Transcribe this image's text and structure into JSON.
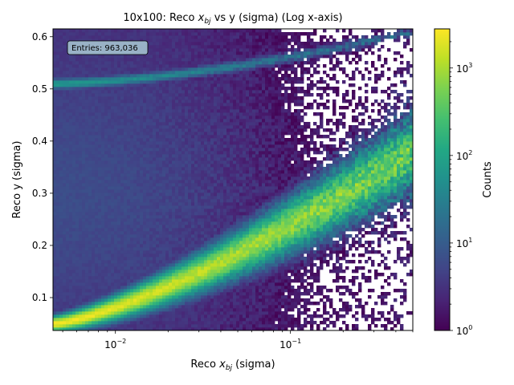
{
  "chart_data": {
    "type": "heatmap",
    "title_prefix": "10x100: Reco ",
    "title_var": "x",
    "title_sub": "bj",
    "title_suffix": " vs y (sigma) (Log x-axis)",
    "xlabel_prefix": "Reco ",
    "xlabel_var": "x",
    "xlabel_sub": "bj",
    "xlabel_suffix": " (sigma)",
    "ylabel": "Reco y (sigma)",
    "x_scale": "log",
    "xlim": [
      0.0044,
      0.5
    ],
    "ylim": [
      0.037,
      0.615
    ],
    "x_ticks": [
      {
        "value": 0.01,
        "base": "10",
        "exp": "−2"
      },
      {
        "value": 0.1,
        "base": "10",
        "exp": "−1"
      }
    ],
    "y_ticks": [
      {
        "value": 0.1,
        "label": "0.1"
      },
      {
        "value": 0.2,
        "label": "0.2"
      },
      {
        "value": 0.3,
        "label": "0.3"
      },
      {
        "value": 0.4,
        "label": "0.4"
      },
      {
        "value": 0.5,
        "label": "0.5"
      },
      {
        "value": 0.6,
        "label": "0.6"
      }
    ],
    "colorbar": {
      "label": "Counts",
      "scale": "log",
      "range": [
        1,
        2800
      ],
      "colormap": "viridis",
      "ticks": [
        {
          "value": 1,
          "base": "10",
          "exp": "0"
        },
        {
          "value": 10,
          "base": "10",
          "exp": "1"
        },
        {
          "value": 100,
          "base": "10",
          "exp": "2"
        },
        {
          "value": 1000,
          "base": "10",
          "exp": "3"
        }
      ]
    },
    "annotation": "Entries: 963,036",
    "ridge_description": {
      "main_ridge_y_at_xmin": 0.05,
      "main_ridge_y_at_xmax": 0.38,
      "upper_band_y_at_xmin": 0.51,
      "upper_band_y_at_xmax": 0.61,
      "peak_counts": 2800
    }
  }
}
